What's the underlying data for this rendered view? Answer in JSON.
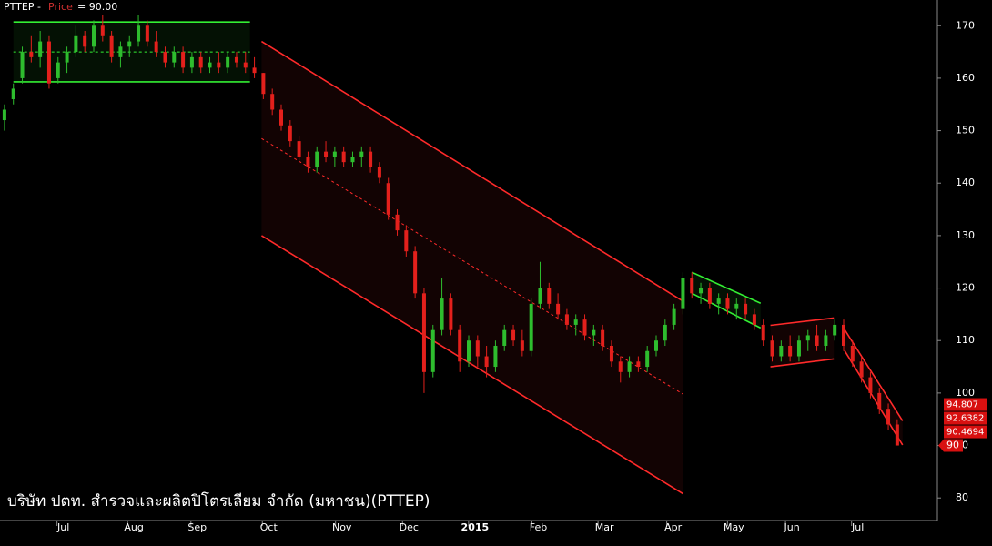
{
  "chart_data": {
    "type": "candlestick",
    "title": [
      "PTTEP -",
      "Price",
      "= 90.00"
    ],
    "company": "บริษัท ปตท. สำรวจและผลิตปิโตรเลียม จำกัด (มหาชน)(PTTEP)",
    "x": [
      0,
      1,
      2,
      3,
      4,
      5,
      6,
      7,
      8,
      9,
      10,
      11,
      12,
      13,
      14,
      15,
      16,
      17,
      18,
      19,
      20,
      21,
      22,
      23,
      24,
      25,
      26,
      27,
      28,
      29,
      30,
      31,
      32,
      33,
      34,
      35,
      36,
      37,
      38,
      39,
      40,
      41,
      42,
      43,
      44,
      45,
      46,
      47,
      48,
      49,
      50,
      51,
      52,
      53,
      54,
      55,
      56,
      57,
      58,
      59,
      60,
      61,
      62,
      63,
      64,
      65,
      66,
      67,
      68,
      69,
      70,
      71,
      72,
      73,
      74,
      75,
      76,
      77,
      78,
      79,
      80,
      81,
      82,
      83,
      84,
      85,
      86,
      87,
      88,
      89,
      90,
      91,
      92,
      93,
      94,
      95,
      96,
      97,
      98,
      99,
      100
    ],
    "open": [
      152,
      156,
      160,
      165,
      164,
      167,
      160,
      163,
      165,
      168,
      166,
      170,
      168,
      164,
      166,
      167,
      170,
      167,
      165,
      163,
      165,
      162,
      164,
      162,
      163,
      162,
      164,
      163,
      162,
      161,
      157,
      154,
      151,
      148,
      145,
      143,
      146,
      145,
      146,
      144,
      145,
      146,
      143,
      140,
      134,
      131,
      127,
      119,
      104,
      112,
      118,
      112,
      106,
      110,
      107,
      105,
      109,
      112,
      110,
      108,
      117,
      120,
      117,
      115,
      113,
      114,
      111,
      112,
      109,
      106,
      104,
      106,
      105,
      108,
      110,
      113,
      116,
      122,
      119,
      120,
      117,
      118,
      116,
      117,
      115,
      113,
      110,
      107,
      109,
      107,
      110,
      111,
      109,
      111,
      113,
      109,
      106,
      103,
      100,
      97,
      94
    ],
    "high": [
      155,
      159,
      166,
      168,
      169,
      168,
      164,
      166,
      170,
      169,
      171,
      172,
      169,
      167,
      168,
      172,
      171,
      169,
      166,
      166,
      166,
      165,
      165,
      164,
      165,
      165,
      165,
      165,
      164,
      161,
      158,
      155,
      152,
      149,
      146,
      147,
      148,
      147,
      147,
      146,
      147,
      147,
      144,
      141,
      135,
      132,
      128,
      120,
      113,
      122,
      119,
      113,
      111,
      111,
      109,
      110,
      113,
      113,
      112,
      118,
      125,
      121,
      119,
      116,
      115,
      115,
      113,
      113,
      110,
      107,
      107,
      107,
      109,
      111,
      114,
      117,
      123,
      123,
      121,
      121,
      119,
      119,
      118,
      118,
      116,
      114,
      111,
      110,
      111,
      111,
      112,
      113,
      112,
      114,
      114,
      110,
      107,
      104,
      101,
      98,
      95
    ],
    "low": [
      150,
      155,
      159,
      163,
      162,
      158,
      159,
      161,
      164,
      165,
      165,
      167,
      163,
      162,
      164,
      166,
      166,
      164,
      162,
      162,
      161,
      161,
      161,
      161,
      161,
      161,
      162,
      161,
      160,
      156,
      153,
      150,
      147,
      144,
      142,
      142,
      144,
      143,
      143,
      143,
      143,
      142,
      140,
      133,
      130,
      126,
      118,
      100,
      103,
      111,
      111,
      104,
      105,
      105,
      103,
      104,
      108,
      109,
      107,
      107,
      116,
      116,
      114,
      112,
      111,
      110,
      109,
      108,
      105,
      102,
      103,
      104,
      104,
      107,
      109,
      112,
      115,
      118,
      117,
      116,
      115,
      115,
      114,
      114,
      112,
      109,
      106,
      106,
      106,
      106,
      108,
      108,
      108,
      110,
      108,
      105,
      102,
      99,
      96,
      93,
      90
    ],
    "close": [
      154,
      158,
      165,
      164,
      167,
      159,
      163,
      165,
      168,
      166,
      170,
      168,
      164,
      166,
      167,
      170,
      167,
      165,
      163,
      165,
      162,
      164,
      162,
      163,
      162,
      164,
      163,
      162,
      161,
      157,
      154,
      151,
      148,
      145,
      143,
      146,
      145,
      146,
      144,
      145,
      146,
      143,
      141,
      134,
      131,
      127,
      119,
      104,
      112,
      118,
      112,
      106,
      110,
      107,
      105,
      109,
      112,
      110,
      108,
      117,
      120,
      117,
      115,
      113,
      114,
      111,
      112,
      109,
      106,
      104,
      106,
      105,
      108,
      110,
      113,
      116,
      122,
      119,
      120,
      117,
      118,
      116,
      117,
      115,
      113,
      110,
      107,
      109,
      107,
      110,
      111,
      109,
      111,
      113,
      109,
      106,
      103,
      100,
      97,
      94,
      90
    ],
    "up_color": "#2ebd2e",
    "down_color": "#e3201c",
    "xlim": [
      -0.5,
      104.5
    ],
    "xticks": [
      {
        "value": 6.6,
        "label": "Jul"
      },
      {
        "value": 14.5,
        "label": "Aug"
      },
      {
        "value": 21.6,
        "label": "Sep"
      },
      {
        "value": 29.6,
        "label": "Oct"
      },
      {
        "value": 37.8,
        "label": "Nov"
      },
      {
        "value": 45.3,
        "label": "Dec"
      },
      {
        "value": 52.7,
        "label": "2015"
      },
      {
        "value": 59.8,
        "label": "Feb"
      },
      {
        "value": 67.2,
        "label": "Mar"
      },
      {
        "value": 74.9,
        "label": "Apr"
      },
      {
        "value": 81.7,
        "label": "May"
      },
      {
        "value": 88.2,
        "label": "Jun"
      },
      {
        "value": 95.6,
        "label": "Jul"
      }
    ],
    "ylim": [
      75.7,
      174.9
    ],
    "yticks": [
      80,
      90,
      100,
      110,
      120,
      130,
      140,
      150,
      160,
      170
    ],
    "channels": [
      {
        "color": "#33ee33",
        "upper": [
          1.0,
          170.7,
          27.5,
          170.7
        ],
        "lower": [
          1.0,
          159.3,
          27.5,
          159.3
        ],
        "middle": [
          1.0,
          165,
          27.5,
          165
        ]
      },
      {
        "color": "#ff2a2a",
        "upper": [
          28.8,
          167,
          76,
          117.5
        ],
        "lower": [
          28.8,
          130,
          76,
          80.8
        ],
        "middle": [
          28.8,
          148.5,
          76,
          99.8
        ]
      },
      {
        "color": "#33ee33",
        "upper": [
          77,
          123,
          84.7,
          117.1
        ],
        "lower": [
          77,
          119,
          84.7,
          112.4
        ]
      },
      {
        "color": "#ff2a2a",
        "upper": [
          85.8,
          112.9,
          92.9,
          114.3
        ],
        "lower": [
          85.8,
          105,
          92.9,
          106.5
        ]
      },
      {
        "color": "#ff2a2a",
        "upper": [
          94.1,
          112.1,
          100.6,
          94.7
        ],
        "lower": [
          94.1,
          108.1,
          100.6,
          90.1
        ]
      }
    ],
    "price_markers": [
      94.807,
      92.6382,
      90.4694
    ],
    "last_price": 90
  }
}
